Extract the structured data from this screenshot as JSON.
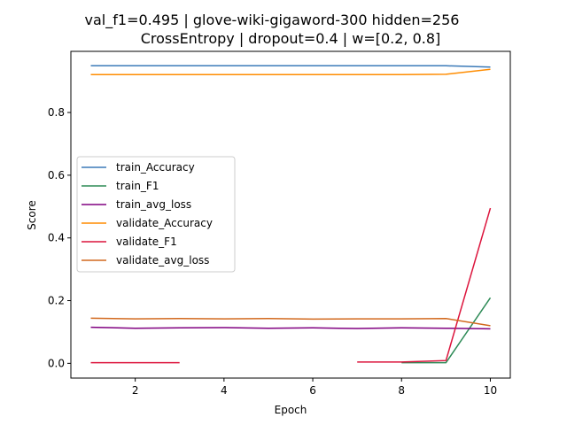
{
  "chart_data": {
    "type": "line",
    "title_line1": "val_f1=0.495 | glove-wiki-gigaword-300  hidden=256",
    "title_line2": "CrossEntropy | dropout=0.4 | w=[0.2, 0.8]",
    "xlabel": "Epoch",
    "ylabel": "Score",
    "xlim": [
      0.55,
      10.45
    ],
    "ylim": [
      -0.047,
      0.995
    ],
    "xticks": [
      2,
      4,
      6,
      8,
      10
    ],
    "yticks": [
      "0.0",
      "0.2",
      "0.4",
      "0.6",
      "0.8"
    ],
    "grid": false,
    "legend_position": "center-left",
    "series": [
      {
        "name": "train_Accuracy",
        "color": "#3b7ab8",
        "points": [
          [
            1,
            0.949
          ],
          [
            2,
            0.949
          ],
          [
            3,
            0.949
          ],
          [
            4,
            0.949
          ],
          [
            5,
            0.949
          ],
          [
            6,
            0.949
          ],
          [
            7,
            0.949
          ],
          [
            8,
            0.949
          ],
          [
            9,
            0.949
          ],
          [
            10,
            0.945
          ]
        ]
      },
      {
        "name": "train_F1",
        "color": "#2e8b57",
        "points": [
          [
            8,
            0.002
          ],
          [
            9,
            0.002
          ],
          [
            10,
            0.209
          ]
        ]
      },
      {
        "name": "train_avg_loss",
        "color": "#800080",
        "points": [
          [
            1,
            0.115
          ],
          [
            2,
            0.112
          ],
          [
            3,
            0.113
          ],
          [
            4,
            0.114
          ],
          [
            5,
            0.112
          ],
          [
            6,
            0.113
          ],
          [
            7,
            0.111
          ],
          [
            8,
            0.113
          ],
          [
            9,
            0.112
          ],
          [
            10,
            0.11
          ]
        ]
      },
      {
        "name": "validate_Accuracy",
        "color": "#ff8c00",
        "points": [
          [
            1,
            0.921
          ],
          [
            2,
            0.921
          ],
          [
            3,
            0.921
          ],
          [
            4,
            0.921
          ],
          [
            5,
            0.921
          ],
          [
            6,
            0.921
          ],
          [
            7,
            0.921
          ],
          [
            8,
            0.921
          ],
          [
            9,
            0.922
          ],
          [
            10,
            0.938
          ]
        ]
      },
      {
        "name": "validate_F1",
        "color": "#dc143c",
        "segments": [
          [
            [
              1,
              0.002
            ],
            [
              2,
              0.002
            ],
            [
              3,
              0.002
            ]
          ],
          [
            [
              7,
              0.004
            ],
            [
              8,
              0.004
            ],
            [
              9,
              0.009
            ],
            [
              10,
              0.495
            ]
          ]
        ]
      },
      {
        "name": "validate_avg_loss",
        "color": "#d2691e",
        "points": [
          [
            1,
            0.144
          ],
          [
            2,
            0.142
          ],
          [
            3,
            0.143
          ],
          [
            4,
            0.142
          ],
          [
            5,
            0.143
          ],
          [
            6,
            0.141
          ],
          [
            7,
            0.142
          ],
          [
            8,
            0.142
          ],
          [
            9,
            0.143
          ],
          [
            10,
            0.12
          ]
        ]
      }
    ]
  }
}
